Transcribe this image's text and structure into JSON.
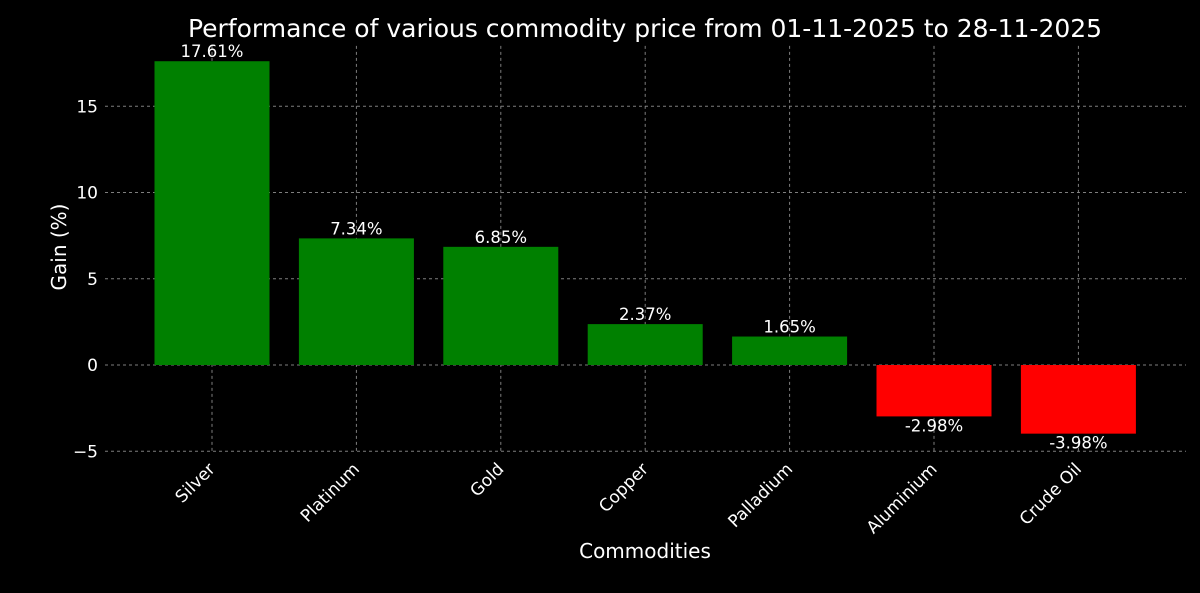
{
  "chart_data": {
    "type": "bar",
    "title": "Performance of various commodity price from 01-11-2025 to 28-11-2025",
    "xlabel": "Commodities",
    "ylabel": "Gain (%)",
    "categories": [
      "Silver",
      "Platinum",
      "Gold",
      "Copper",
      "Palladium",
      "Aluminium",
      "Crude Oil"
    ],
    "values": [
      17.61,
      7.34,
      6.85,
      2.37,
      1.65,
      -2.98,
      -3.98
    ],
    "value_labels": [
      "17.61%",
      "7.34%",
      "6.85%",
      "2.37%",
      "1.65%",
      "-2.98%",
      "-3.98%"
    ],
    "ylim": [
      -5,
      18.5
    ],
    "yticks": [
      -5,
      0,
      5,
      10,
      15
    ],
    "ytick_labels": [
      "−5",
      "0",
      "5",
      "10",
      "15"
    ],
    "grid": true,
    "colors": {
      "positive": "#008000",
      "negative": "#ff0000",
      "background": "#000000",
      "text": "#ffffff"
    }
  }
}
